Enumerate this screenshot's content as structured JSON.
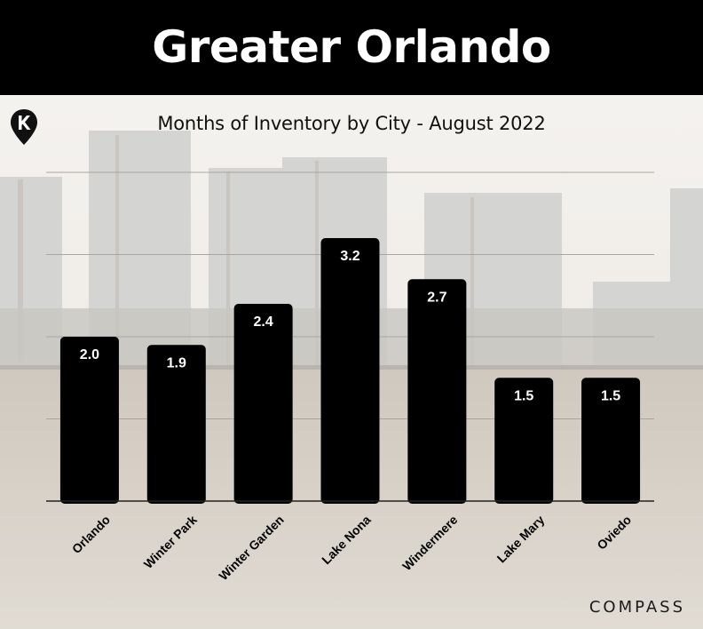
{
  "header": {
    "title": "Greater Orlando"
  },
  "brand": {
    "name": "COMPASS"
  },
  "logo_icon": "map-pin-k-logo",
  "colors": {
    "header_bg": "#000000",
    "bar": "#000000",
    "bar_label": "#ffffff"
  },
  "chart_data": {
    "type": "bar",
    "title": "Months of Inventory by City - August 2022",
    "xlabel": "",
    "ylabel": "",
    "categories": [
      "Orlando",
      "Winter Park",
      "Winter Garden",
      "Lake Nona",
      "Windermere",
      "Lake Mary",
      "Oviedo"
    ],
    "values": [
      2.0,
      1.9,
      2.4,
      3.2,
      2.7,
      1.5,
      1.5
    ],
    "value_labels": [
      "2.0",
      "1.9",
      "2.4",
      "3.2",
      "2.7",
      "1.5",
      "1.5"
    ],
    "ylim": [
      0,
      4
    ],
    "grid": true,
    "legend": "none"
  }
}
